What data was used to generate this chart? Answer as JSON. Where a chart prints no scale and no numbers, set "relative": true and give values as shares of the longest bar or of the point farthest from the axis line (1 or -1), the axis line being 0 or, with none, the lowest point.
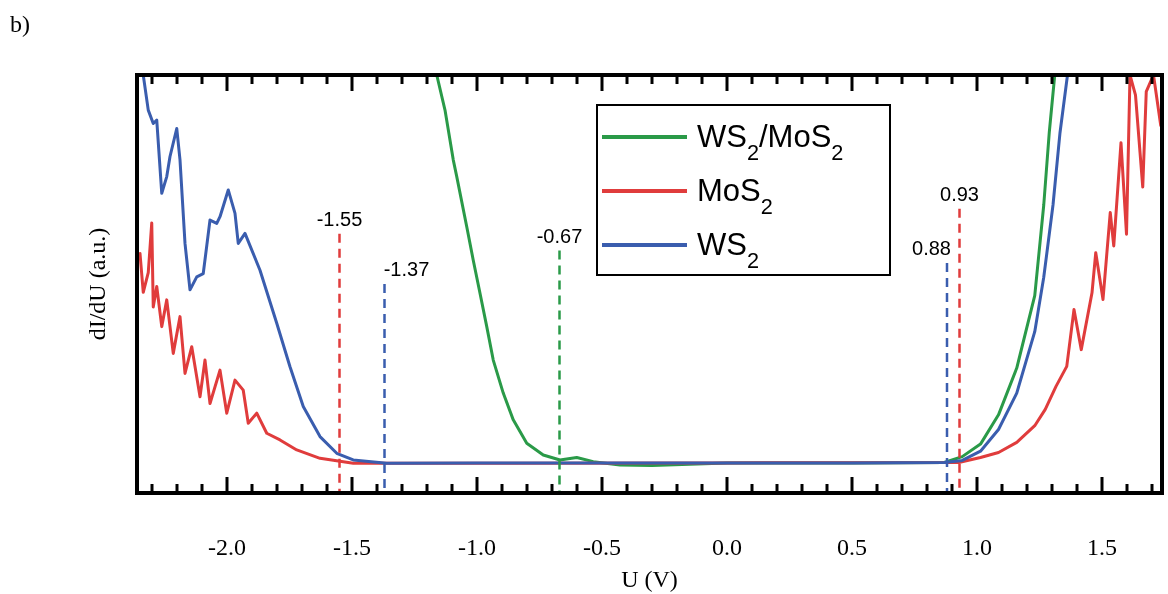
{
  "chart_data": {
    "type": "line",
    "relative": true,
    "xlabel": "U (V)",
    "ylabel": "dI/dU (a.u.)",
    "annotations": [
      "b)"
    ],
    "xlim": [
      -2.36,
      1.74
    ],
    "xticks": [
      {
        "value": -2.3,
        "label": null
      },
      {
        "value": -2.2,
        "label": null
      },
      {
        "value": -2.1,
        "label": null
      },
      {
        "value": -2.0,
        "label": "-2.0"
      },
      {
        "value": -1.9,
        "label": null
      },
      {
        "value": -1.8,
        "label": null
      },
      {
        "value": -1.7,
        "label": null
      },
      {
        "value": -1.6,
        "label": null
      },
      {
        "value": -1.5,
        "label": "-1.5"
      },
      {
        "value": -1.4,
        "label": null
      },
      {
        "value": -1.3,
        "label": null
      },
      {
        "value": -1.2,
        "label": null
      },
      {
        "value": -1.1,
        "label": null
      },
      {
        "value": -1.0,
        "label": "-1.0"
      },
      {
        "value": -0.9,
        "label": null
      },
      {
        "value": -0.8,
        "label": null
      },
      {
        "value": -0.7,
        "label": null
      },
      {
        "value": -0.6,
        "label": null
      },
      {
        "value": -0.5,
        "label": "-0.5"
      },
      {
        "value": -0.4,
        "label": null
      },
      {
        "value": -0.3,
        "label": null
      },
      {
        "value": -0.2,
        "label": null
      },
      {
        "value": -0.1,
        "label": null
      },
      {
        "value": 0,
        "label": "0.0"
      },
      {
        "value": 0.1,
        "label": null
      },
      {
        "value": 0.2,
        "label": null
      },
      {
        "value": 0.3,
        "label": null
      },
      {
        "value": 0.4,
        "label": null
      },
      {
        "value": 0.5,
        "label": "0.5"
      },
      {
        "value": 0.6,
        "label": null
      },
      {
        "value": 0.7,
        "label": null
      },
      {
        "value": 0.8,
        "label": null
      },
      {
        "value": 0.9,
        "label": null
      },
      {
        "value": 1.0,
        "label": "1.0"
      },
      {
        "value": 1.1,
        "label": null
      },
      {
        "value": 1.2,
        "label": null
      },
      {
        "value": 1.3,
        "label": null
      },
      {
        "value": 1.4,
        "label": null
      },
      {
        "value": 1.5,
        "label": "1.5"
      },
      {
        "value": 1.6,
        "label": null
      },
      {
        "value": 1.7,
        "label": null
      }
    ],
    "legend": "top",
    "line_style": "solid",
    "grid": false,
    "series": [
      {
        "name": "WS$_{2}$/MoS$_{2}$",
        "color": "#2a9a48",
        "x": [
          -1.161,
          -1.128,
          -1.095,
          -1.081,
          -1.041,
          -1.015,
          -0.988,
          -0.961,
          -0.935,
          -0.895,
          -0.855,
          -0.801,
          -0.735,
          -0.668,
          -0.601,
          -0.535,
          -0.428,
          -0.3,
          0.0,
          0.5,
          0.869,
          0.941,
          1.014,
          1.086,
          1.159,
          1.231,
          1.267,
          1.289,
          1.311
        ],
        "values": [
          1.0,
          0.916,
          0.797,
          0.757,
          0.637,
          0.557,
          0.478,
          0.398,
          0.318,
          0.239,
          0.175,
          0.119,
          0.091,
          0.079,
          0.085,
          0.075,
          0.067,
          0.066,
          0.072,
          0.072,
          0.073,
          0.087,
          0.117,
          0.187,
          0.299,
          0.472,
          0.689,
          0.862,
          1.0
        ]
      },
      {
        "name": "MoS$_{2}$",
        "color": "#e03c3c",
        "x": [
          -2.348,
          -2.335,
          -2.315,
          -2.301,
          -2.295,
          -2.281,
          -2.261,
          -2.241,
          -2.215,
          -2.188,
          -2.168,
          -2.141,
          -2.108,
          -2.088,
          -2.068,
          -2.028,
          -2.001,
          -1.968,
          -1.935,
          -1.915,
          -1.881,
          -1.841,
          -1.788,
          -1.721,
          -1.628,
          -1.495,
          0.0,
          0.927,
          1.014,
          1.086,
          1.159,
          1.231,
          1.273,
          1.316,
          1.359,
          1.388,
          1.417,
          1.46,
          1.475,
          1.504,
          1.533,
          1.547,
          1.576,
          1.598,
          1.612,
          1.634,
          1.663,
          1.677,
          1.706,
          1.735
        ],
        "values": [
          0.573,
          0.48,
          0.527,
          0.646,
          0.445,
          0.494,
          0.398,
          0.462,
          0.334,
          0.422,
          0.286,
          0.35,
          0.23,
          0.318,
          0.214,
          0.294,
          0.191,
          0.27,
          0.246,
          0.167,
          0.191,
          0.143,
          0.127,
          0.103,
          0.083,
          0.071,
          0.072,
          0.073,
          0.085,
          0.097,
          0.121,
          0.161,
          0.2,
          0.255,
          0.303,
          0.439,
          0.343,
          0.479,
          0.575,
          0.463,
          0.671,
          0.591,
          0.838,
          0.619,
          1.0,
          0.952,
          0.732,
          0.96,
          1.0,
          0.879
        ]
      },
      {
        "name": "WS$_{2}$",
        "color": "#3a5dae",
        "x": [
          -2.335,
          -2.315,
          -2.295,
          -2.281,
          -2.261,
          -2.241,
          -2.228,
          -2.201,
          -2.188,
          -2.168,
          -2.148,
          -2.121,
          -2.095,
          -2.068,
          -2.041,
          -2.028,
          -1.995,
          -1.968,
          -1.955,
          -1.928,
          -1.868,
          -1.801,
          -1.748,
          -1.695,
          -1.628,
          -1.561,
          -1.495,
          -1.361,
          -1.0,
          0.0,
          0.5,
          0.869,
          0.941,
          1.014,
          1.086,
          1.159,
          1.231,
          1.267,
          1.304,
          1.332,
          1.362
        ],
        "values": [
          1.0,
          0.916,
          0.884,
          0.892,
          0.717,
          0.757,
          0.805,
          0.872,
          0.797,
          0.597,
          0.486,
          0.517,
          0.525,
          0.653,
          0.645,
          0.661,
          0.725,
          0.669,
          0.597,
          0.621,
          0.533,
          0.406,
          0.302,
          0.207,
          0.135,
          0.095,
          0.079,
          0.071,
          0.072,
          0.072,
          0.072,
          0.073,
          0.078,
          0.1,
          0.152,
          0.239,
          0.386,
          0.516,
          0.689,
          0.862,
          1.0
        ]
      }
    ],
    "ref_lines": [
      {
        "axis": "x",
        "value": -1.55,
        "label": "-1.55",
        "color": "#e03c3c",
        "line_style": "dashed"
      },
      {
        "axis": "x",
        "value": -1.37,
        "label": "-1.37",
        "color": "#3a5dae",
        "line_style": "dashed"
      },
      {
        "axis": "x",
        "value": -0.67,
        "label": "-0.67",
        "color": "#2a9a48",
        "line_style": "dashed"
      },
      {
        "axis": "x",
        "value": 0.88,
        "label": "0.88",
        "color": "#3a5dae",
        "line_style": "dashed"
      },
      {
        "axis": "x",
        "value": 0.93,
        "label": "0.93",
        "color": "#e03c3c",
        "line_style": "dashed"
      }
    ]
  }
}
